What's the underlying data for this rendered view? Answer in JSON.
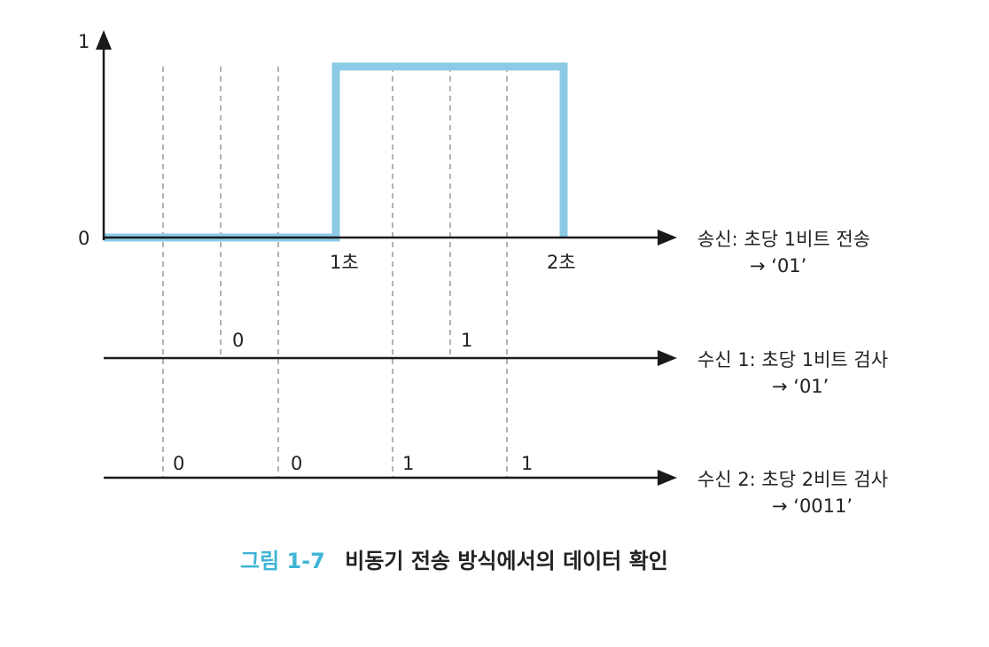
{
  "colors": {
    "signal": "#8ccbe6",
    "axis": "#1a1a1a",
    "guide": "#999999",
    "caption_number": "#3fb4d6",
    "text": "#222222"
  },
  "axis": {
    "y_top_label": "1",
    "y_zero_label": "0",
    "tick_1": "1초",
    "tick_2": "2초"
  },
  "chart_data": {
    "type": "line",
    "levels": [
      0,
      1
    ],
    "transmit_series": {
      "x_seconds": [
        0,
        1,
        1,
        2
      ],
      "y": [
        0,
        0,
        1,
        1
      ]
    }
  },
  "rows": {
    "send": {
      "label_line1": "송신: 초당 1비트 전송",
      "label_line2": "→ ‘01’"
    },
    "recv1": {
      "label_line1": "수신 1: 초당 1비트 검사",
      "label_line2": "→ ‘01’",
      "bits": [
        "0",
        "1"
      ]
    },
    "recv2": {
      "label_line1": "수신 2: 초당 2비트 검사",
      "label_line2": "→ ‘0011’",
      "bits": [
        "0",
        "0",
        "1",
        "1"
      ]
    }
  },
  "caption": {
    "number": "그림 1-7",
    "text": "비동기 전송 방식에서의 데이터 확인"
  }
}
